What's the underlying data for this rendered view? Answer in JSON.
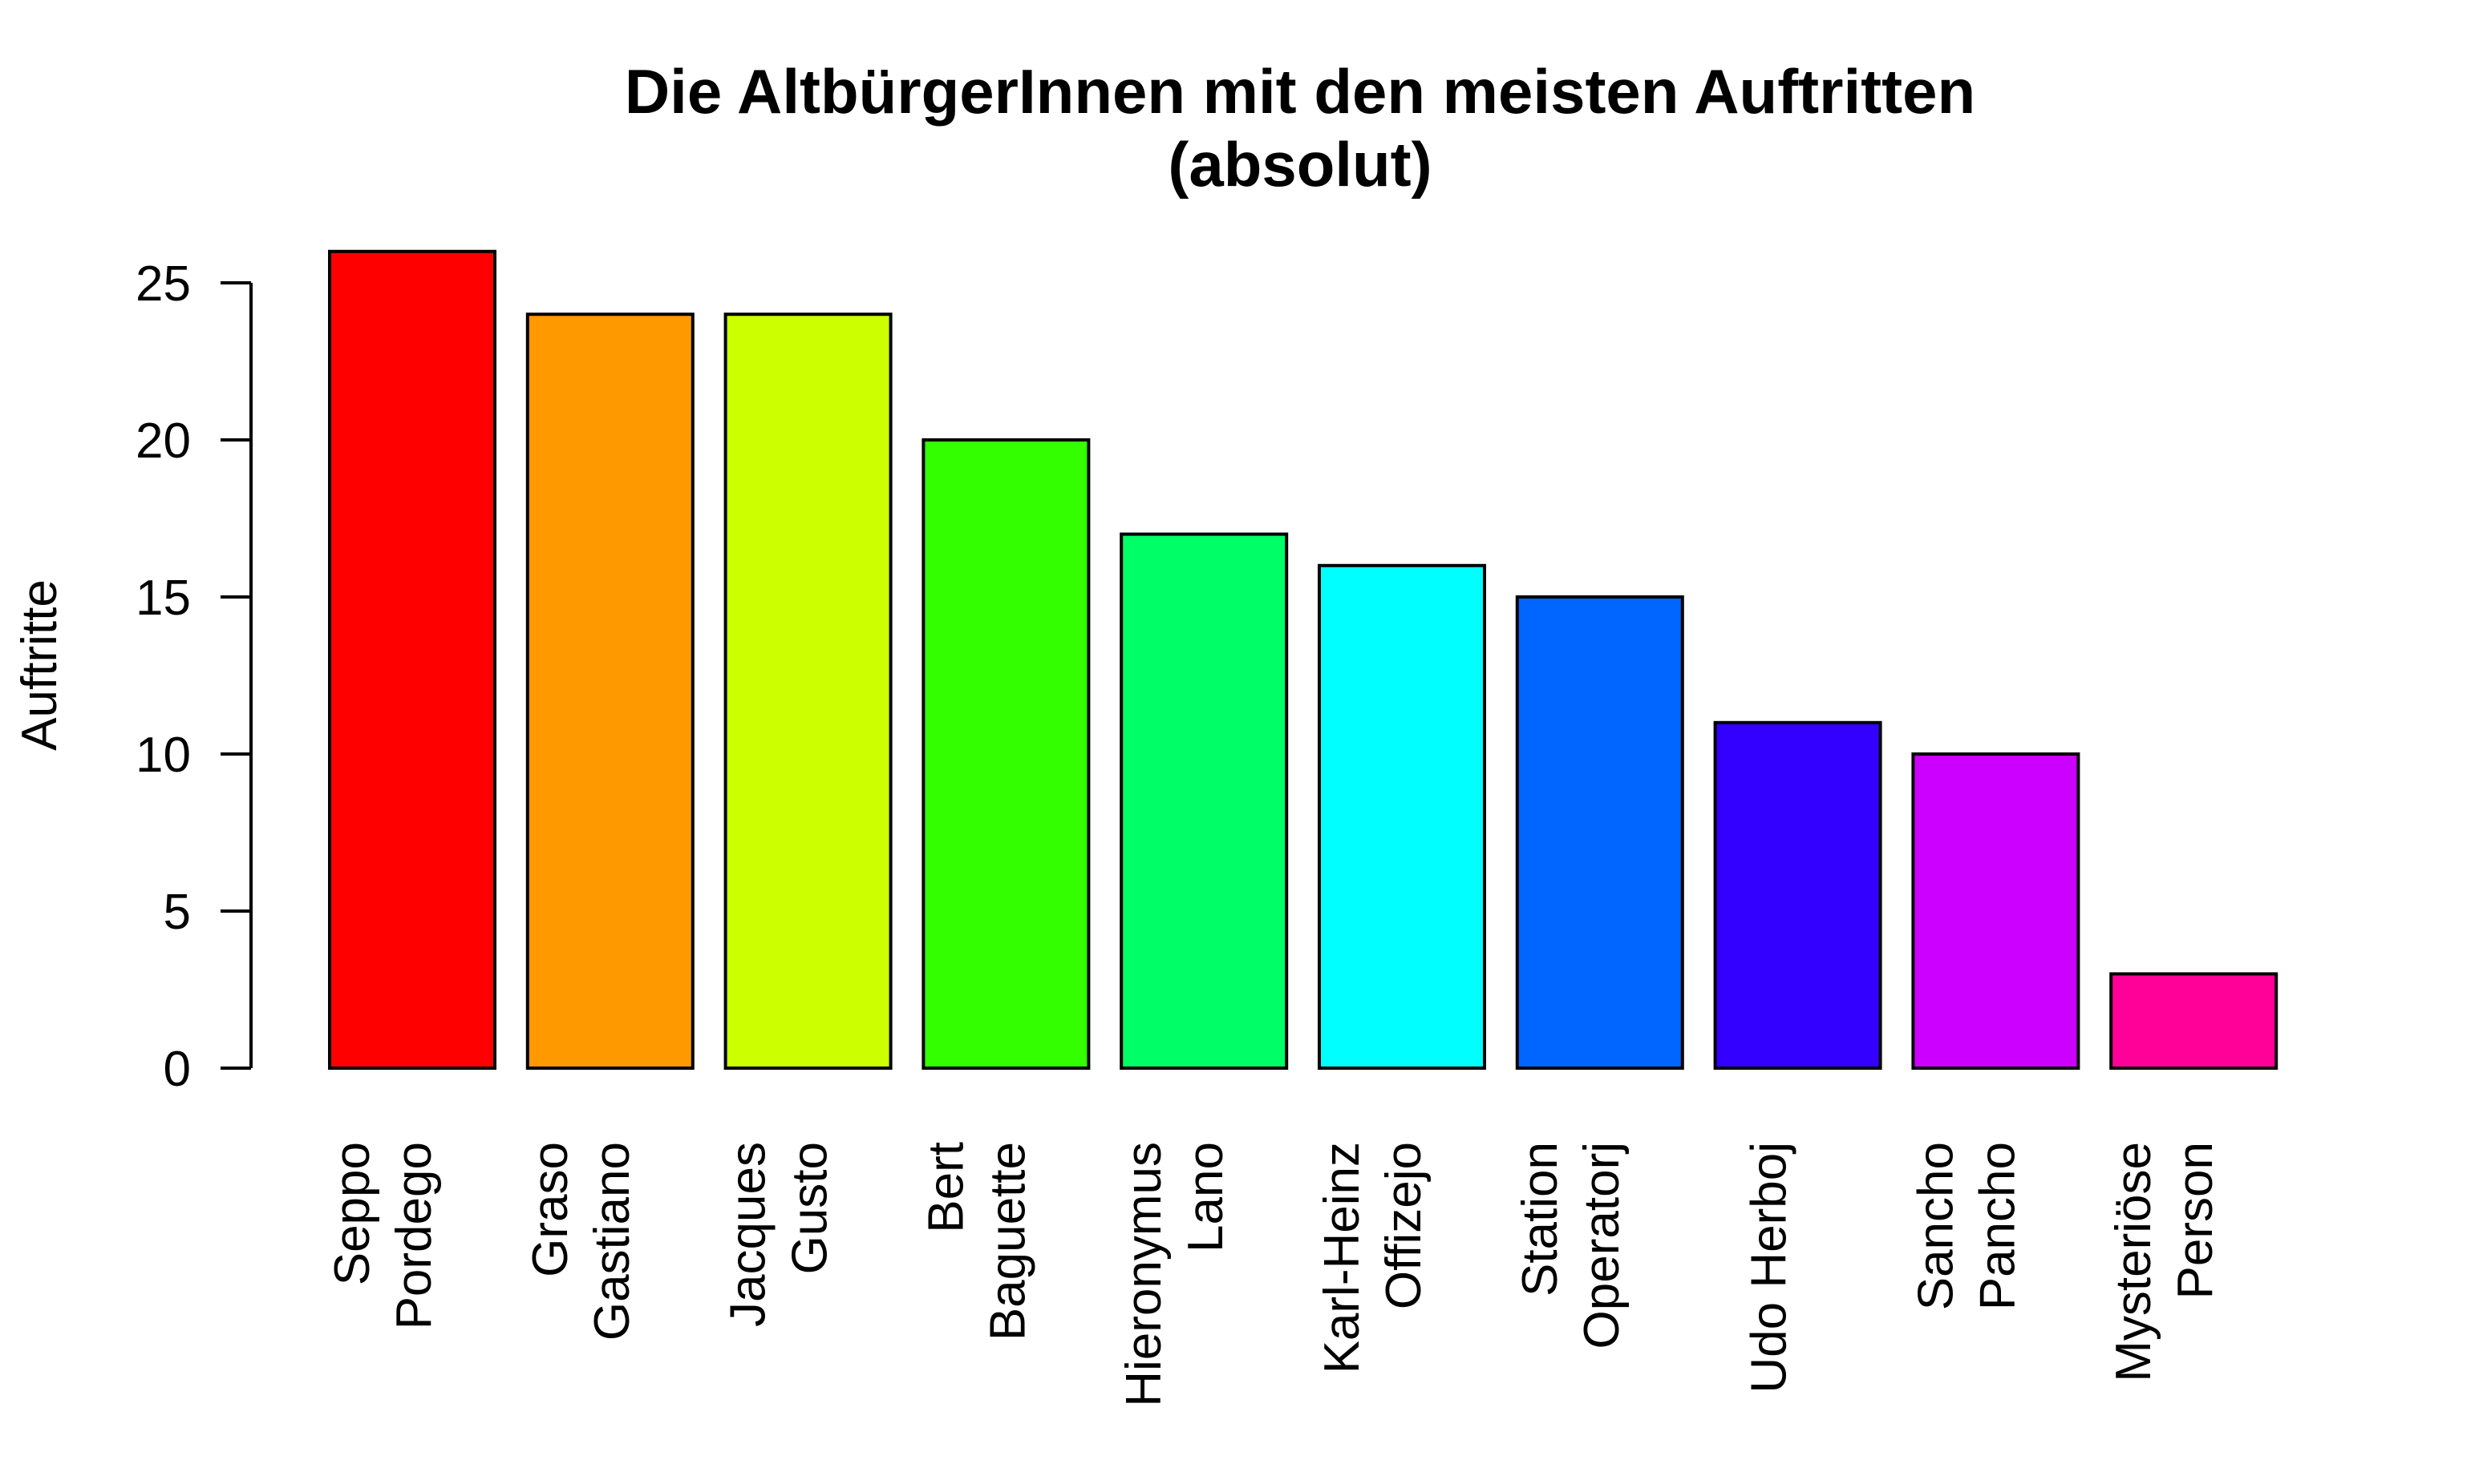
{
  "chart_data": {
    "type": "bar",
    "title": "Die AltbürgerInnen mit den meisten Auftritten",
    "subtitle": "(absolut)",
    "xlabel": "",
    "ylabel": "Auftritte",
    "ylim": [
      0,
      26
    ],
    "yticks": [
      0,
      5,
      10,
      15,
      20,
      25
    ],
    "ytick_labels": [
      "0",
      "5",
      "10",
      "15",
      "20",
      "25"
    ],
    "grid": false,
    "legend": "none",
    "categories": [
      [
        "Seppo",
        "Pordego"
      ],
      [
        "Graso",
        "Gastiano"
      ],
      [
        "Jacques",
        "Gusto"
      ],
      [
        "Bert",
        "Baguette"
      ],
      [
        "Hieronymus",
        "Lano"
      ],
      [
        "Karl-Heinz",
        "Offizejo"
      ],
      [
        "Station",
        "Operatorj"
      ],
      [
        "Udo Herboj"
      ],
      [
        "Sancho",
        "Pancho"
      ],
      [
        "Mysteriöse",
        "Person"
      ]
    ],
    "values": [
      26,
      24,
      24,
      20,
      17,
      16,
      15,
      11,
      10,
      3
    ],
    "colors": [
      "#FF0000",
      "#FF9900",
      "#CCFF00",
      "#33FF00",
      "#00FF66",
      "#00FFFF",
      "#0066FF",
      "#3300FF",
      "#CC00FF",
      "#FF0099"
    ]
  }
}
